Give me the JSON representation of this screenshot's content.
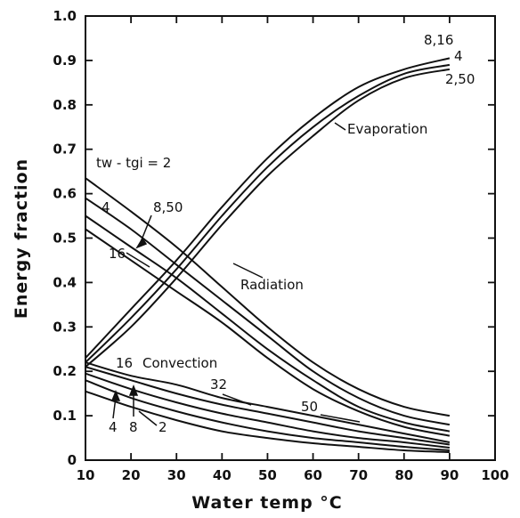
{
  "chart_data": {
    "type": "line",
    "xlabel": "Water temp °C",
    "ylabel": "Energy fraction",
    "xlim": [
      10,
      100
    ],
    "ylim": [
      0,
      1.0
    ],
    "xticks": [
      "10",
      "20",
      "30",
      "40",
      "50",
      "60",
      "70",
      "80",
      "90",
      "100"
    ],
    "yticks": [
      "0",
      "0.1",
      "0.2",
      "0.3",
      "0.4",
      "0.5",
      "0.6",
      "0.7",
      "0.8",
      "0.9",
      "1.0"
    ],
    "grid": false,
    "annotations": {
      "evaporation": "Evaporation",
      "radiation": "Radiation",
      "convection": "Convection",
      "delta_t": "tw - tgi = 2",
      "evap_816": "8,16",
      "evap_4": "4",
      "evap_250": "2,50",
      "rad_4": "4",
      "rad_850": "8,50",
      "rad_16": "16",
      "conv_16": "16",
      "conv_32": "32",
      "conv_50": "50",
      "conv_4": "4",
      "conv_8": "8",
      "conv_2": "2"
    },
    "groups": [
      {
        "group": "Evaporation",
        "x": [
          10,
          20,
          30,
          40,
          50,
          60,
          70,
          80,
          90
        ],
        "series": [
          {
            "name": "8,16",
            "values": [
              0.23,
              0.34,
              0.45,
              0.57,
              0.68,
              0.77,
              0.84,
              0.88,
              0.905
            ]
          },
          {
            "name": "4",
            "values": [
              0.22,
              0.32,
              0.43,
              0.55,
              0.66,
              0.75,
              0.82,
              0.87,
              0.89
            ]
          },
          {
            "name": "2,50",
            "values": [
              0.21,
              0.3,
              0.41,
              0.53,
              0.64,
              0.73,
              0.81,
              0.86,
              0.88
            ]
          }
        ]
      },
      {
        "group": "Radiation",
        "x": [
          10,
          20,
          30,
          40,
          50,
          60,
          70,
          80,
          90
        ],
        "series": [
          {
            "name": "2",
            "values": [
              0.635,
              0.56,
              0.48,
              0.39,
              0.3,
              0.22,
              0.16,
              0.12,
              0.1
            ]
          },
          {
            "name": "4",
            "values": [
              0.59,
              0.52,
              0.44,
              0.36,
              0.28,
              0.2,
              0.14,
              0.1,
              0.08
            ]
          },
          {
            "name": "8,50",
            "values": [
              0.55,
              0.48,
              0.41,
              0.33,
              0.25,
              0.18,
              0.12,
              0.085,
              0.065
            ]
          },
          {
            "name": "16",
            "values": [
              0.52,
              0.45,
              0.38,
              0.31,
              0.23,
              0.16,
              0.11,
              0.075,
              0.055
            ]
          }
        ]
      },
      {
        "group": "Convection",
        "x": [
          10,
          20,
          30,
          40,
          50,
          60,
          70,
          80,
          90
        ],
        "series": [
          {
            "name": "16",
            "values": [
              0.22,
              0.19,
              0.17,
              0.14,
              0.12,
              0.1,
              0.08,
              0.06,
              0.04
            ]
          },
          {
            "name": "32",
            "values": [
              0.21,
              0.18,
              0.15,
              0.125,
              0.105,
              0.085,
              0.065,
              0.05,
              0.035
            ]
          },
          {
            "name": "8",
            "values": [
              0.195,
              0.16,
              0.13,
              0.105,
              0.085,
              0.065,
              0.05,
              0.04,
              0.028
            ]
          },
          {
            "name": "4",
            "values": [
              0.18,
              0.14,
              0.11,
              0.085,
              0.065,
              0.05,
              0.04,
              0.03,
              0.022
            ]
          },
          {
            "name": "2",
            "values": [
              0.155,
              0.12,
              0.09,
              0.065,
              0.05,
              0.038,
              0.03,
              0.022,
              0.018
            ]
          }
        ]
      }
    ]
  }
}
